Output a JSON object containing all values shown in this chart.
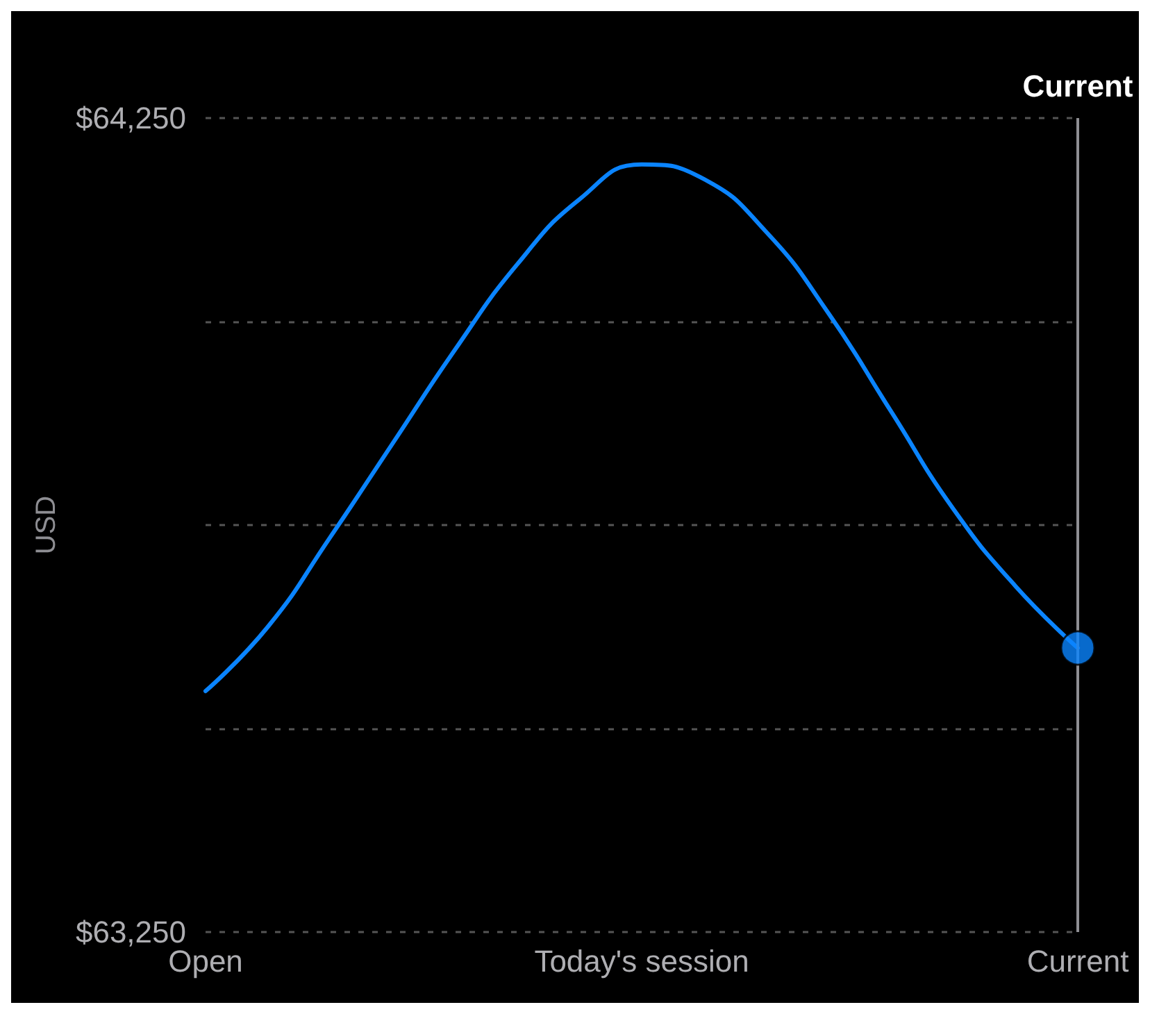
{
  "chart_data": {
    "type": "line",
    "ylabel": "USD",
    "categories": [
      "Open",
      null,
      null,
      null,
      null,
      null,
      null,
      "Today's session",
      null,
      null,
      null,
      null,
      null,
      null,
      "Current"
    ],
    "ylim": [
      63250,
      64250
    ],
    "yticks": [
      {
        "value": 63250,
        "label": "$63,250"
      },
      {
        "value": 63500,
        "label": null
      },
      {
        "value": 63750,
        "label": null
      },
      {
        "value": 64000,
        "label": null
      },
      {
        "value": 64250,
        "label": "$64,250"
      }
    ],
    "series": [
      {
        "color": "#0a84ff",
        "values": [
          63546,
          63625,
          63735,
          63850,
          63965,
          64070,
          64150,
          64193,
          64175,
          64110,
          64010,
          63890,
          63770,
          63675,
          63599
        ],
        "marker": "none"
      },
      {
        "type": "scatter",
        "color": "#0a84ff",
        "values": [
          null,
          null,
          null,
          null,
          null,
          null,
          null,
          null,
          null,
          null,
          null,
          null,
          null,
          null,
          63599
        ],
        "marker": "circle"
      }
    ],
    "ref_lines": [
      {
        "axis": "x",
        "value": "Current",
        "label": "Current",
        "color": "#8e8e93",
        "line_style": "solid"
      }
    ],
    "grid": "y",
    "line_style": "solid"
  }
}
